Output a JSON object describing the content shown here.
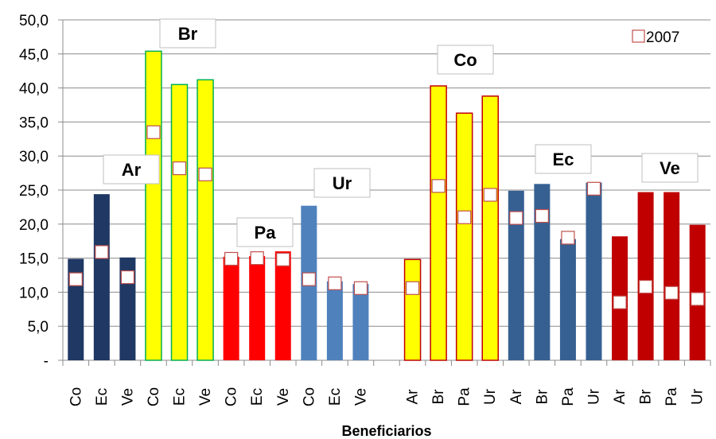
{
  "chart_data": {
    "type": "bar",
    "xlabel": "Beneficiarios",
    "ylabel": "",
    "ylim": [
      0,
      50
    ],
    "ytick_values": [
      0,
      5,
      10,
      15,
      20,
      25,
      30,
      35,
      40,
      45,
      50
    ],
    "ytick_labels": [
      "-",
      "5,0",
      "10,0",
      "15,0",
      "20,0",
      "25,0",
      "30,0",
      "35,0",
      "40,0",
      "45,0",
      "50,0"
    ],
    "grid": "horizontal",
    "legend": {
      "position": "top-right",
      "entries": [
        {
          "label": "2007",
          "marker": "square-outline",
          "color": "#c0504d"
        }
      ]
    },
    "colors": {
      "Ar": "#1f3864",
      "Br": "#ffff00",
      "Br_border": "#00b050",
      "Pa": "#ff0000",
      "Ur": "#4f81bd",
      "Co": "#ffff00",
      "Co_border": "#c00000",
      "Ec": "#366092",
      "Ve": "#c00000",
      "marker_border": "#c0504d"
    },
    "groups": [
      {
        "label": "Ar",
        "slot_start": 0,
        "color_key": "Ar",
        "categories": [
          "Co",
          "Ec",
          "Ve"
        ],
        "values": [
          14.9,
          24.4,
          15.1
        ],
        "values_2007": [
          11.9,
          15.9,
          12.2
        ]
      },
      {
        "label": "Br",
        "slot_start": 3,
        "color_key": "Br",
        "categories": [
          "Co",
          "Ec",
          "Ve"
        ],
        "values": [
          45.4,
          40.5,
          41.2
        ],
        "values_2007": [
          33.5,
          28.2,
          27.3
        ]
      },
      {
        "label": "Pa",
        "slot_start": 6,
        "color_key": "Pa",
        "categories": [
          "Co",
          "Ec",
          "Ve"
        ],
        "values": [
          15.2,
          15.3,
          16.0
        ],
        "values_2007": [
          14.9,
          15.0,
          14.8
        ]
      },
      {
        "label": "Ur",
        "slot_start": 9,
        "color_key": "Ur",
        "categories": [
          "Co",
          "Ec",
          "Ve"
        ],
        "values": [
          22.7,
          11.6,
          11.2
        ],
        "values_2007": [
          11.9,
          11.3,
          10.6
        ]
      },
      {
        "label": "Co",
        "slot_start": 13,
        "color_key": "Co",
        "categories": [
          "Ar",
          "Br",
          "Pa",
          "Ur"
        ],
        "values": [
          14.8,
          40.3,
          36.3,
          38.8
        ],
        "values_2007": [
          10.6,
          25.6,
          21.0,
          24.3
        ]
      },
      {
        "label": "Ec",
        "slot_start": 17,
        "color_key": "Ec",
        "categories": [
          "Ar",
          "Br",
          "Pa",
          "Ur"
        ],
        "values": [
          24.9,
          25.9,
          17.8,
          26.1
        ],
        "values_2007": [
          20.9,
          21.2,
          18.0,
          25.2
        ]
      },
      {
        "label": "Ve",
        "slot_start": 21,
        "color_key": "Ve",
        "categories": [
          "Ar",
          "Br",
          "Pa",
          "Ur"
        ],
        "values": [
          18.2,
          24.7,
          24.7,
          19.9
        ],
        "values_2007": [
          8.5,
          10.8,
          9.9,
          9.0
        ]
      }
    ],
    "total_slots": 25
  }
}
